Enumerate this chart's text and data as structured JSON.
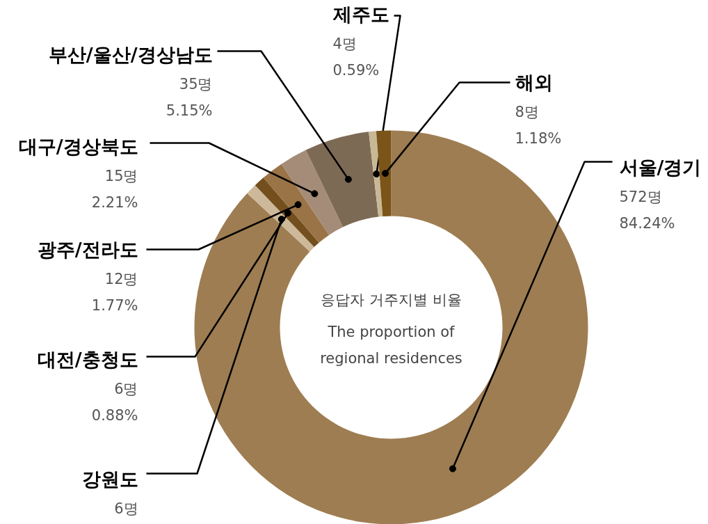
{
  "chart_data": {
    "type": "donut",
    "title": "응답자 거주지별 비율",
    "subtitle": "The proportion of\nregional residences",
    "categories": [
      "서울/경기",
      "강원도",
      "대전/충청도",
      "광주/전라도",
      "대구/경상북도",
      "부산/울산/경상남도",
      "제주도",
      "해외"
    ],
    "values": [
      572,
      6,
      6,
      12,
      15,
      35,
      4,
      8
    ],
    "colors": [
      "#9e7d52",
      "#cdb99a",
      "#734f1d",
      "#9a7346",
      "#a58c78",
      "#7d6a55",
      "#c8b896",
      "#7a5418"
    ],
    "value_labels": [
      "572명\n84.24%",
      "6명",
      "6명\n0.88%",
      "12명\n1.77%",
      "15명\n2.21%",
      "35명\n5.15%",
      "4명\n0.59%",
      "8명\n1.18%"
    ]
  }
}
